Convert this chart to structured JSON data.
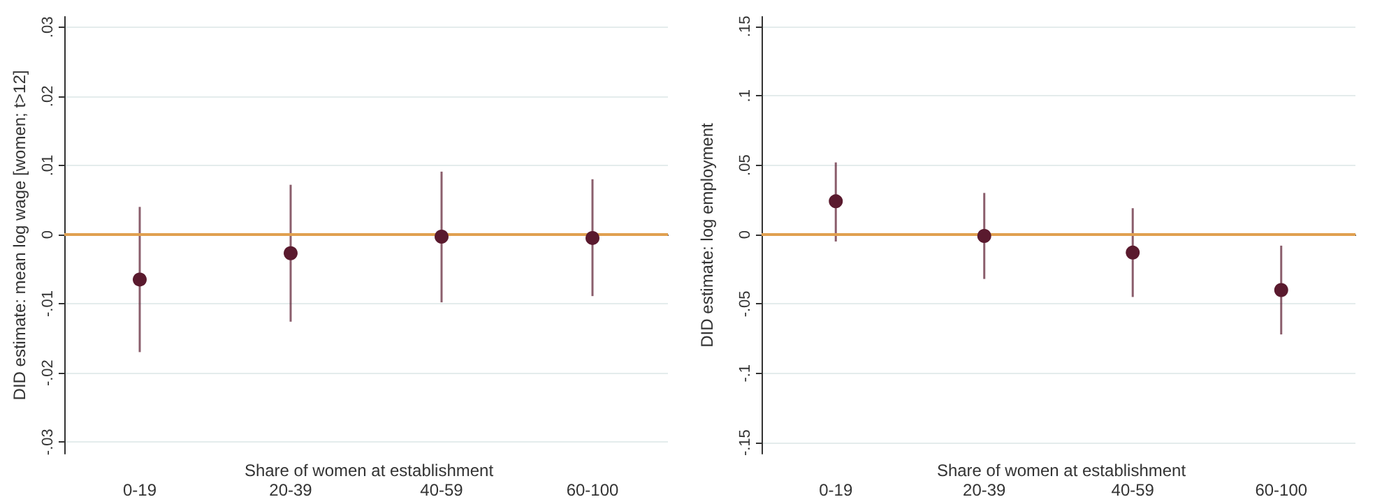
{
  "chart_data": [
    {
      "type": "scatter",
      "xlabel": "Share of women at establishment",
      "ylabel": "DID estimate: mean log wage [women; t>12]",
      "categories": [
        "0-19",
        "20-39",
        "40-59",
        "60-100"
      ],
      "series": [
        {
          "color": "#5a1a2e",
          "values": [
            -0.0065,
            -0.0027,
            -0.0003,
            -0.0005
          ],
          "errors": [
            [
              -0.017,
              0.004
            ],
            [
              -0.0126,
              0.0072
            ],
            [
              -0.0098,
              0.0091
            ],
            [
              -0.0089,
              0.008
            ]
          ]
        }
      ],
      "ylim": [
        -0.0317,
        0.0315
      ],
      "yticks": [
        {
          "value": -0.03,
          "label": "-.03"
        },
        {
          "value": -0.02,
          "label": "-.02"
        },
        {
          "value": -0.01,
          "label": "-.01"
        },
        0,
        {
          "value": 0.01,
          "label": ".01"
        },
        {
          "value": 0.02,
          "label": ".02"
        },
        {
          "value": 0.03,
          "label": ".03"
        }
      ],
      "ref_lines": [
        {
          "axis": "y",
          "value": 0,
          "color": "#e0a050"
        }
      ],
      "grid": "y",
      "marker": "circle"
    },
    {
      "type": "scatter",
      "xlabel": "Share of women at establishment",
      "ylabel": "DID estimate: log employment",
      "categories": [
        "0-19",
        "20-39",
        "40-59",
        "60-100"
      ],
      "series": [
        {
          "color": "#5a1a2e",
          "values": [
            0.024,
            -0.001,
            -0.013,
            -0.04
          ],
          "errors": [
            [
              -0.005,
              0.052
            ],
            [
              -0.032,
              0.03
            ],
            [
              -0.045,
              0.019
            ],
            [
              -0.072,
              -0.008
            ]
          ]
        }
      ],
      "ylim": [
        -0.158,
        0.157
      ],
      "yticks": [
        {
          "value": -0.15,
          "label": "-.15"
        },
        {
          "value": -0.1,
          "label": "-.1"
        },
        {
          "value": -0.05,
          "label": "-.05"
        },
        0,
        {
          "value": 0.05,
          "label": ".05"
        },
        {
          "value": 0.1,
          "label": ".1"
        },
        {
          "value": 0.15,
          "label": ".15"
        }
      ],
      "ref_lines": [
        {
          "axis": "y",
          "value": 0,
          "color": "#e0a050"
        }
      ],
      "grid": "y",
      "marker": "circle"
    }
  ]
}
